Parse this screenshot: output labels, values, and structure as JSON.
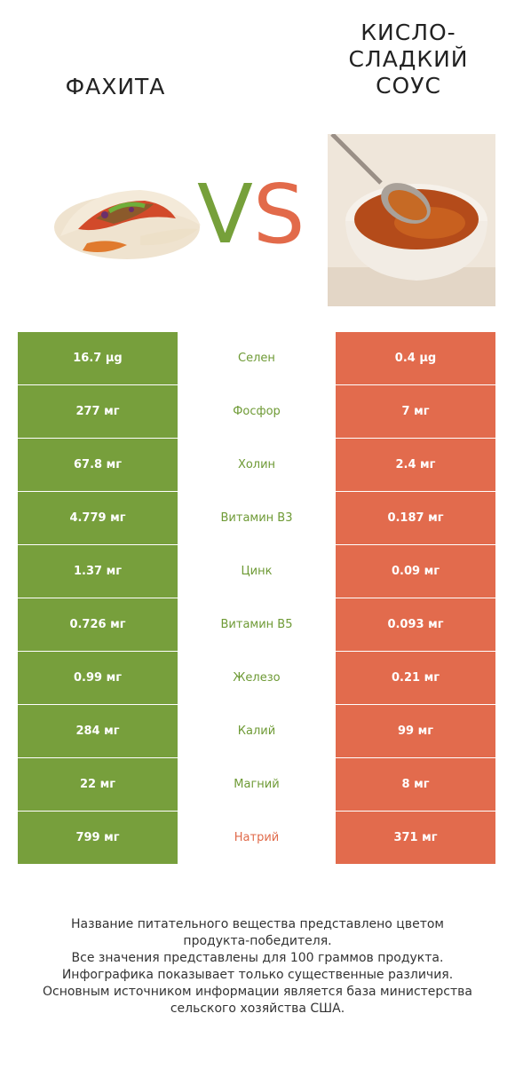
{
  "left_food": {
    "name": "ФАХИТА",
    "icon": "fajita-wrap-image"
  },
  "right_food": {
    "name": [
      "КИСЛО-",
      "СЛАДКИЙ",
      "СОУС"
    ],
    "icon": "sweet-sour-sauce-bowl-image"
  },
  "vs": {
    "v": "V",
    "s": "S"
  },
  "colors": {
    "left": "#779f3c",
    "right": "#e26b4d"
  },
  "rows": [
    {
      "nutrient": "Селен",
      "left": "16.7 µg",
      "right": "0.4 µg",
      "winner": "left"
    },
    {
      "nutrient": "Фосфор",
      "left": "277 мг",
      "right": "7 мг",
      "winner": "left"
    },
    {
      "nutrient": "Холин",
      "left": "67.8 мг",
      "right": "2.4 мг",
      "winner": "left"
    },
    {
      "nutrient": "Витамин B3",
      "left": "4.779 мг",
      "right": "0.187 мг",
      "winner": "left"
    },
    {
      "nutrient": "Цинк",
      "left": "1.37 мг",
      "right": "0.09 мг",
      "winner": "left"
    },
    {
      "nutrient": "Витамин B5",
      "left": "0.726 мг",
      "right": "0.093 мг",
      "winner": "left"
    },
    {
      "nutrient": "Железо",
      "left": "0.99 мг",
      "right": "0.21 мг",
      "winner": "left"
    },
    {
      "nutrient": "Калий",
      "left": "284 мг",
      "right": "99 мг",
      "winner": "left"
    },
    {
      "nutrient": "Магний",
      "left": "22 мг",
      "right": "8 мг",
      "winner": "left"
    },
    {
      "nutrient": "Натрий",
      "left": "799 мг",
      "right": "371 мг",
      "winner": "right"
    }
  ],
  "footnote": [
    "Название питательного вещества представлено цветом",
    "продукта-победителя.",
    "Все значения представлены для 100 граммов продукта.",
    "Инфографика показывает только существенные различия.",
    "Основным источником информации является база министерства",
    "сельского хозяйства США."
  ]
}
